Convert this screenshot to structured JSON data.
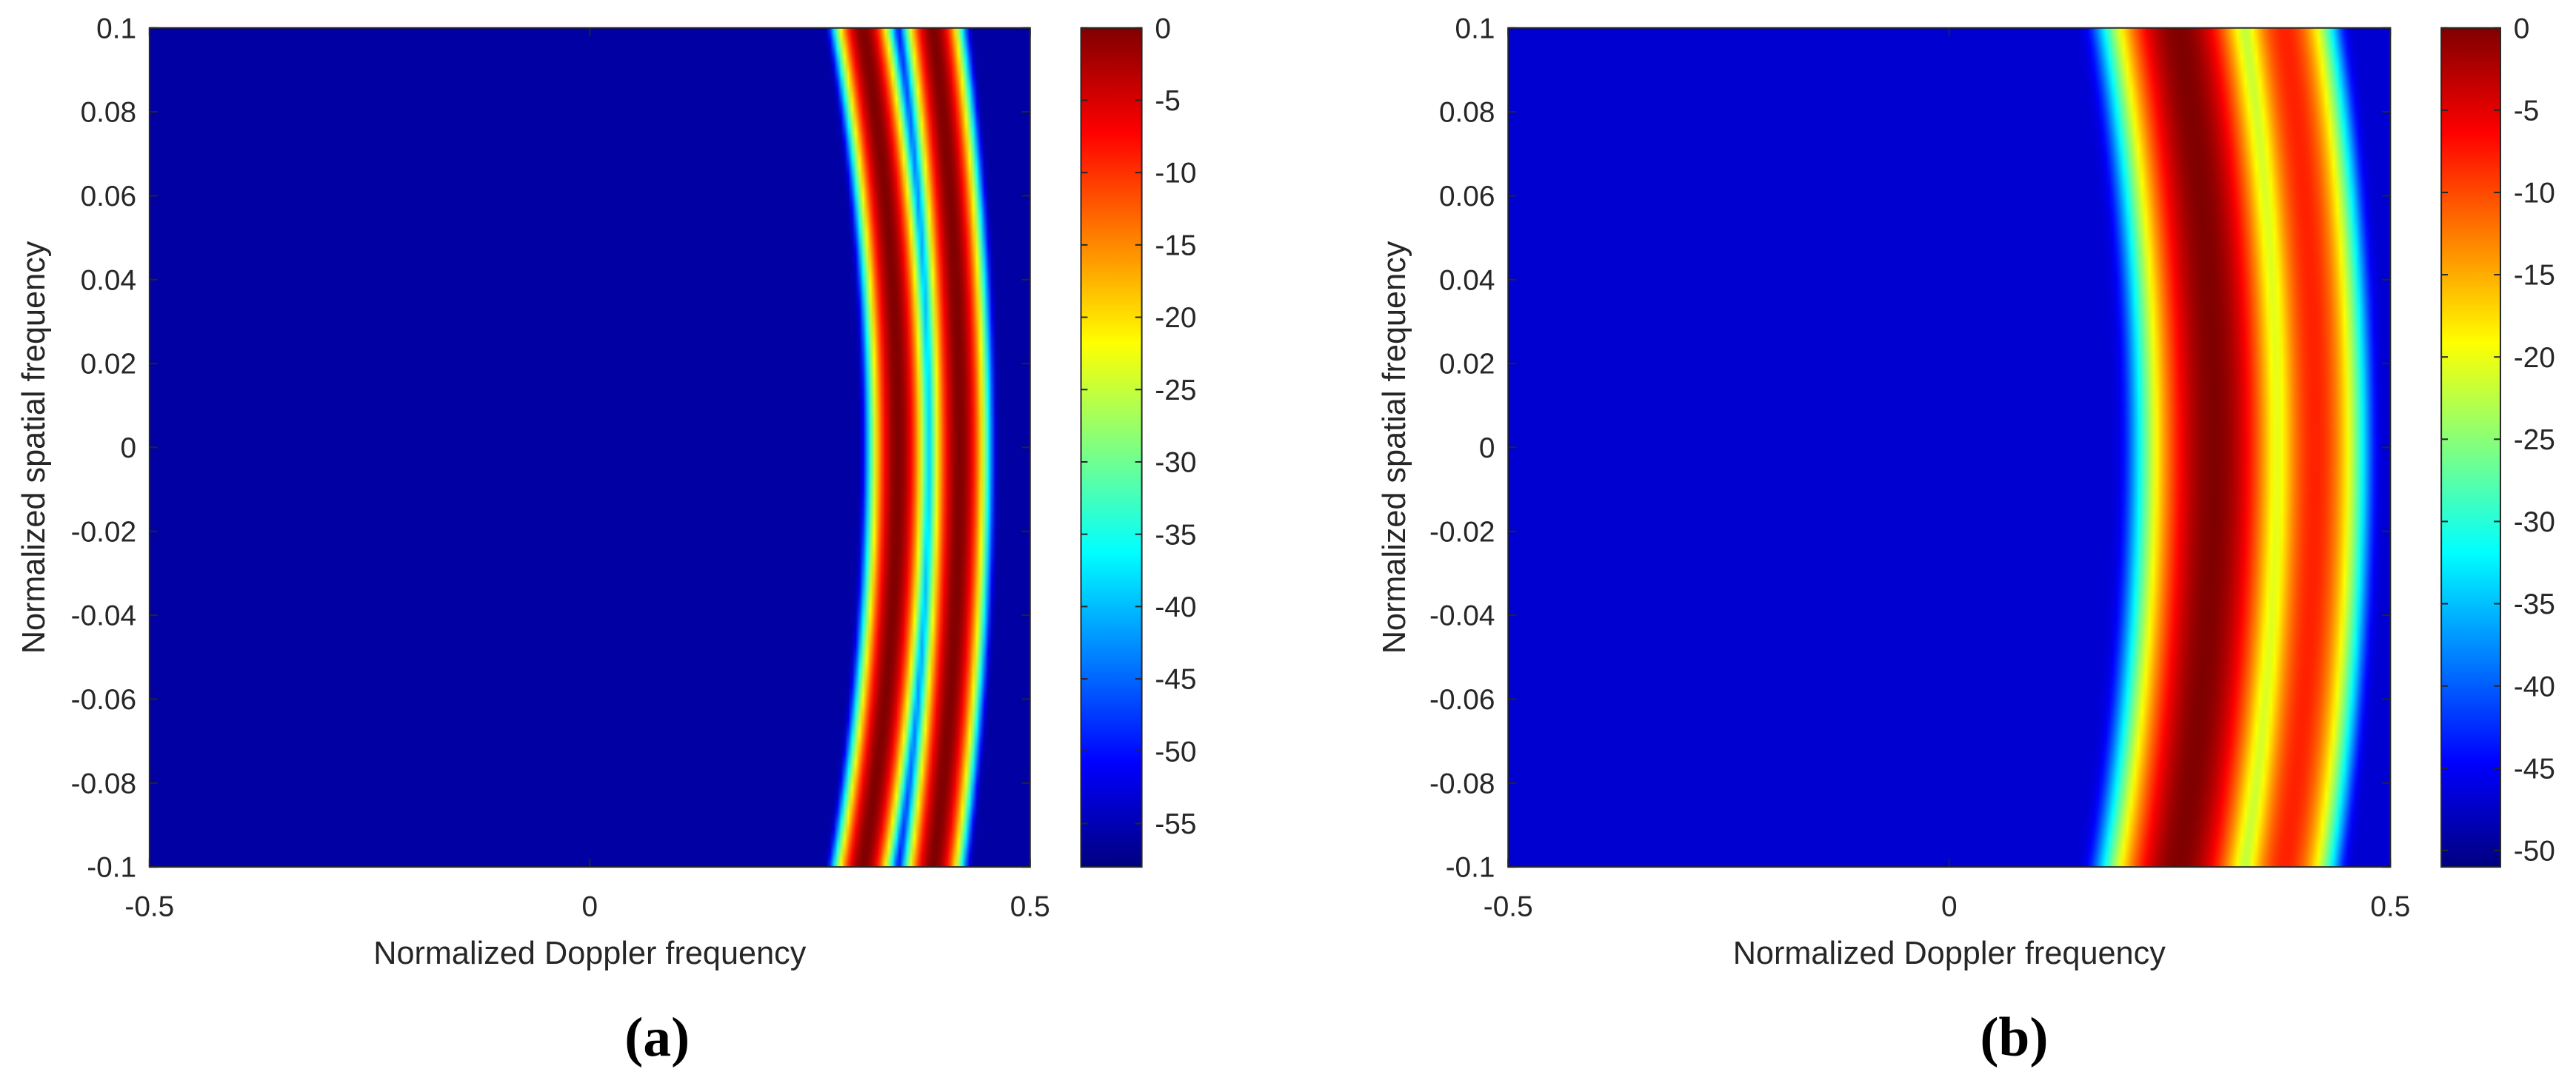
{
  "figure": {
    "panel_labels": [
      "(a)",
      "(b)"
    ]
  },
  "chart_data": [
    {
      "type": "heatmap",
      "panel_label": "(a)",
      "title": "",
      "xlabel": "Normalized Doppler frequency",
      "ylabel": "Normalized spatial frequency",
      "xlim": [
        -0.5,
        0.5
      ],
      "ylim": [
        -0.1,
        0.1
      ],
      "xticks": [
        -0.5,
        0,
        0.5
      ],
      "xtick_labels": [
        "-0.5",
        "0",
        "0.5"
      ],
      "yticks": [
        0.1,
        0.08,
        0.06,
        0.04,
        0.02,
        0,
        -0.02,
        -0.04,
        -0.06,
        -0.08,
        -0.1
      ],
      "ytick_labels": [
        "0.1",
        "0.08",
        "0.06",
        "0.04",
        "0.02",
        "0",
        "-0.02",
        "-0.04",
        "-0.06",
        "-0.08",
        "-0.1"
      ],
      "colormap": "jet",
      "colorbar": {
        "clim": [
          -58,
          0
        ],
        "ticks": [
          0,
          -5,
          -10,
          -15,
          -20,
          -25,
          -30,
          -35,
          -40,
          -45,
          -50,
          -55
        ],
        "tick_labels": [
          "0",
          "-5",
          "-10",
          "-15",
          "-20",
          "-25",
          "-30",
          "-35",
          "-40",
          "-45",
          "-50",
          "-55"
        ]
      },
      "background_level": -56,
      "ridges": [
        {
          "name": "clutter ridge 1",
          "center_fd": 0.35,
          "edge_fd": 0.31,
          "peak_level": 0,
          "width_fd": 0.008
        },
        {
          "name": "clutter ridge 2",
          "center_fd": 0.42,
          "edge_fd": 0.39,
          "peak_level": 0,
          "width_fd": 0.008
        }
      ]
    },
    {
      "type": "heatmap",
      "panel_label": "(b)",
      "title": "",
      "xlabel": "Normalized Doppler frequency",
      "ylabel": "Normalized spatial frequency",
      "xlim": [
        -0.5,
        0.5
      ],
      "ylim": [
        -0.1,
        0.1
      ],
      "xticks": [
        -0.5,
        0,
        0.5
      ],
      "xtick_labels": [
        "-0.5",
        "0",
        "0.5"
      ],
      "yticks": [
        0.1,
        0.08,
        0.06,
        0.04,
        0.02,
        0,
        -0.02,
        -0.04,
        -0.06,
        -0.08,
        -0.1
      ],
      "ytick_labels": [
        "0.1",
        "0.08",
        "0.06",
        "0.04",
        "0.02",
        "0",
        "-0.02",
        "-0.04",
        "-0.06",
        "-0.08",
        "-0.1"
      ],
      "colormap": "jet",
      "colorbar": {
        "clim": [
          -51,
          0
        ],
        "ticks": [
          0,
          -5,
          -10,
          -15,
          -20,
          -25,
          -30,
          -35,
          -40,
          -45,
          -50
        ],
        "tick_labels": [
          "0",
          "-5",
          "-10",
          "-15",
          "-20",
          "-25",
          "-30",
          "-35",
          "-40",
          "-45",
          "-50"
        ]
      },
      "background_level": -47,
      "ridges": [
        {
          "name": "clutter ridge 1",
          "center_fd": 0.3,
          "edge_fd": 0.26,
          "peak_level": 0,
          "width_fd": 0.022
        },
        {
          "name": "clutter ridge 2",
          "center_fd": 0.415,
          "edge_fd": 0.38,
          "peak_level": -8,
          "width_fd": 0.016
        }
      ]
    }
  ]
}
